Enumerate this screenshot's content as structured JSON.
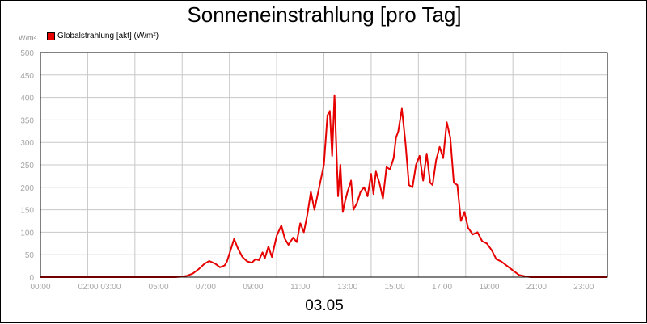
{
  "chart_data": {
    "type": "line",
    "title": "Sonneneinstrahlung [pro Tag]",
    "xlabel": "03.05",
    "ylabel": "W/m²",
    "unit_label": "W/m²",
    "ylim": [
      0,
      500
    ],
    "y_ticks": [
      "0",
      "50",
      "100",
      "150",
      "200",
      "250",
      "300",
      "350",
      "400",
      "450",
      "500"
    ],
    "x_tick_labels": [
      {
        "label": "00:00",
        "h": 0
      },
      {
        "label": "02:00 03:00",
        "h": 2.5
      },
      {
        "label": "05:00",
        "h": 5
      },
      {
        "label": "07:00",
        "h": 7
      },
      {
        "label": "09:00",
        "h": 9
      },
      {
        "label": "11:00",
        "h": 11
      },
      {
        "label": "13:00",
        "h": 13
      },
      {
        "label": "15:00",
        "h": 15
      },
      {
        "label": "17:00",
        "h": 17
      },
      {
        "label": "19:00",
        "h": 19
      },
      {
        "label": "21:00",
        "h": 21
      },
      {
        "label": "23:00",
        "h": 23
      }
    ],
    "grid": true,
    "legend_position": "top-left",
    "series": [
      {
        "name": "Globalstrahlung [akt] (W/m²)",
        "color": "#e60000",
        "x": [
          0,
          5.7,
          6.0,
          6.2,
          6.45,
          6.7,
          6.95,
          7.15,
          7.4,
          7.6,
          7.8,
          7.9,
          8.05,
          8.2,
          8.35,
          8.55,
          8.75,
          8.95,
          9.1,
          9.25,
          9.4,
          9.5,
          9.65,
          9.8,
          10.0,
          10.2,
          10.35,
          10.5,
          10.7,
          10.85,
          11.0,
          11.15,
          11.3,
          11.45,
          11.6,
          11.8,
          12.0,
          12.15,
          12.25,
          12.35,
          12.45,
          12.6,
          12.7,
          12.8,
          12.9,
          13.0,
          13.15,
          13.25,
          13.4,
          13.55,
          13.7,
          13.85,
          14.0,
          14.1,
          14.2,
          14.35,
          14.5,
          14.65,
          14.8,
          14.95,
          15.05,
          15.15,
          15.3,
          15.45,
          15.6,
          15.75,
          15.9,
          16.05,
          16.2,
          16.35,
          16.5,
          16.6,
          16.75,
          16.9,
          17.05,
          17.2,
          17.35,
          17.5,
          17.65,
          17.8,
          17.95,
          18.1,
          18.3,
          18.5,
          18.7,
          18.9,
          19.1,
          19.3,
          19.5,
          19.75,
          20.0,
          20.25,
          20.5,
          20.75,
          21.0,
          24.0
        ],
        "y": [
          0,
          0,
          1,
          3,
          8,
          18,
          30,
          36,
          30,
          22,
          26,
          35,
          60,
          85,
          65,
          45,
          35,
          32,
          40,
          38,
          55,
          42,
          68,
          45,
          92,
          115,
          85,
          72,
          88,
          78,
          120,
          100,
          140,
          190,
          150,
          200,
          250,
          360,
          370,
          270,
          405,
          180,
          250,
          145,
          170,
          190,
          215,
          150,
          165,
          190,
          200,
          180,
          230,
          185,
          235,
          210,
          175,
          245,
          240,
          265,
          310,
          325,
          375,
          300,
          205,
          200,
          250,
          270,
          215,
          275,
          210,
          205,
          260,
          290,
          265,
          345,
          310,
          210,
          205,
          125,
          145,
          110,
          95,
          100,
          80,
          75,
          60,
          40,
          35,
          25,
          15,
          5,
          2,
          0,
          0,
          0
        ]
      }
    ]
  }
}
